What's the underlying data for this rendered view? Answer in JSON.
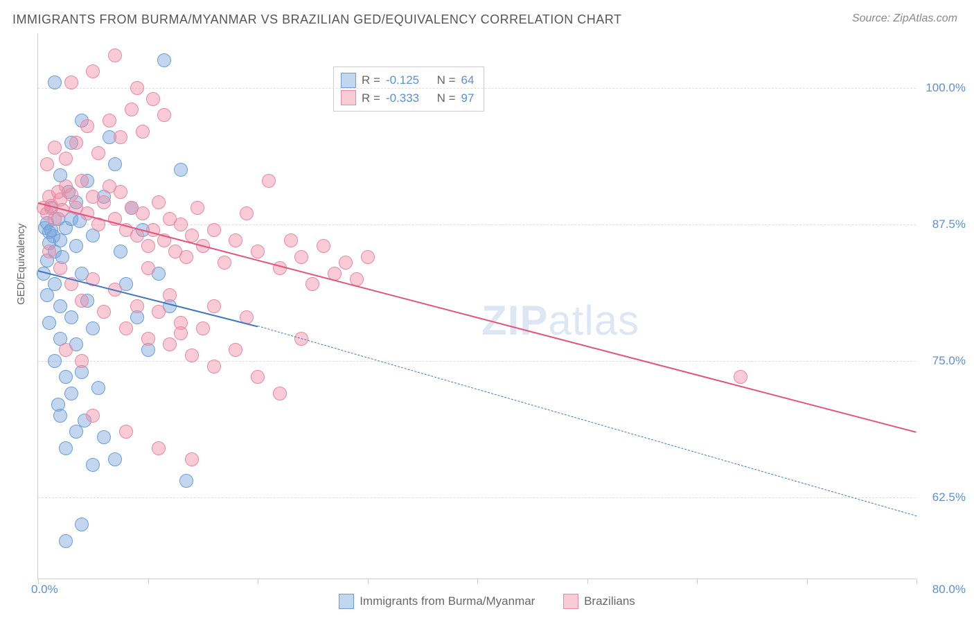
{
  "title": "IMMIGRANTS FROM BURMA/MYANMAR VS BRAZILIAN GED/EQUIVALENCY CORRELATION CHART",
  "source": "Source: ZipAtlas.com",
  "watermark_bold": "ZIP",
  "watermark_rest": "atlas",
  "chart": {
    "type": "scatter",
    "ylabel": "GED/Equivalency",
    "xlim": [
      0,
      80
    ],
    "ylim": [
      55,
      105
    ],
    "ytick_labels": [
      "62.5%",
      "75.0%",
      "87.5%",
      "100.0%"
    ],
    "ytick_values": [
      62.5,
      75.0,
      87.5,
      100.0
    ],
    "xtick_values": [
      0,
      10,
      20,
      30,
      40,
      50,
      60,
      70,
      80
    ],
    "xaxis_min_label": "0.0%",
    "xaxis_max_label": "80.0%",
    "background_color": "#ffffff",
    "grid_color": "#dddddd",
    "axis_color": "#cccccc",
    "tick_label_color": "#5b8fd6",
    "ylabel_color": "#666666",
    "marker_radius": 10,
    "series": [
      {
        "name": "Immigrants from Burma/Myanmar",
        "fill_color": "rgba(120,165,220,0.45)",
        "stroke_color": "#6a9ed8",
        "line_color": "#3f78c1",
        "line_width": 2.5,
        "dash_line_width": 1.5,
        "R": "-0.125",
        "N": "64",
        "trend": {
          "x1": 0,
          "y1": 83.3,
          "x2_solid": 20,
          "y2_solid": 78.2,
          "x2_dash": 80,
          "y2_dash": 60.8
        },
        "points": [
          [
            0.6,
            87.2
          ],
          [
            0.8,
            87.6
          ],
          [
            1.0,
            86.8
          ],
          [
            1.2,
            87.0
          ],
          [
            1.4,
            86.4
          ],
          [
            1.0,
            85.8
          ],
          [
            0.8,
            84.2
          ],
          [
            1.5,
            85.0
          ],
          [
            2.0,
            86.0
          ],
          [
            2.5,
            87.2
          ],
          [
            3.0,
            88.0
          ],
          [
            2.2,
            84.5
          ],
          [
            3.5,
            85.5
          ],
          [
            4.0,
            83.0
          ],
          [
            1.5,
            82.0
          ],
          [
            2.0,
            80.0
          ],
          [
            3.0,
            79.0
          ],
          [
            4.5,
            80.5
          ],
          [
            1.0,
            78.5
          ],
          [
            2.0,
            77.0
          ],
          [
            3.5,
            76.5
          ],
          [
            5.0,
            78.0
          ],
          [
            1.5,
            75.0
          ],
          [
            2.5,
            73.5
          ],
          [
            4.0,
            74.0
          ],
          [
            3.0,
            72.0
          ],
          [
            1.8,
            71.0
          ],
          [
            5.5,
            72.5
          ],
          [
            2.0,
            70.0
          ],
          [
            4.2,
            69.5
          ],
          [
            3.5,
            68.5
          ],
          [
            6.0,
            68.0
          ],
          [
            2.5,
            67.0
          ],
          [
            5.0,
            65.5
          ],
          [
            7.0,
            66.0
          ],
          [
            4.5,
            91.5
          ],
          [
            2.0,
            92.0
          ],
          [
            3.5,
            89.5
          ],
          [
            6.0,
            90.0
          ],
          [
            5.0,
            86.5
          ],
          [
            7.5,
            85.0
          ],
          [
            8.0,
            82.0
          ],
          [
            9.0,
            79.0
          ],
          [
            10.0,
            76.0
          ],
          [
            9.5,
            87.0
          ],
          [
            11.0,
            83.0
          ],
          [
            12.0,
            80.0
          ],
          [
            13.0,
            92.5
          ],
          [
            11.5,
            102.5
          ],
          [
            1.5,
            100.5
          ],
          [
            3.0,
            95.0
          ],
          [
            4.0,
            97.0
          ],
          [
            6.5,
            95.5
          ],
          [
            7.0,
            93.0
          ],
          [
            8.5,
            89.0
          ],
          [
            4.0,
            60.0
          ],
          [
            2.5,
            58.5
          ],
          [
            13.5,
            64.0
          ],
          [
            0.5,
            83.0
          ],
          [
            0.8,
            81.0
          ],
          [
            1.2,
            89.0
          ],
          [
            1.8,
            88.0
          ],
          [
            2.8,
            90.5
          ],
          [
            3.8,
            87.8
          ]
        ]
      },
      {
        "name": "Brazilians",
        "fill_color": "rgba(240,140,165,0.45)",
        "stroke_color": "#e889a3",
        "line_color": "#e5537a",
        "line_width": 2.5,
        "R": "-0.333",
        "N": "97",
        "trend": {
          "x1": 0,
          "y1": 89.5,
          "x2_solid": 80,
          "y2_solid": 68.5
        },
        "points": [
          [
            0.5,
            89.0
          ],
          [
            0.8,
            88.5
          ],
          [
            1.0,
            90.0
          ],
          [
            1.2,
            89.2
          ],
          [
            1.5,
            88.0
          ],
          [
            1.8,
            90.5
          ],
          [
            2.0,
            89.8
          ],
          [
            2.2,
            88.8
          ],
          [
            2.5,
            91.0
          ],
          [
            3.0,
            90.2
          ],
          [
            3.5,
            89.0
          ],
          [
            4.0,
            91.5
          ],
          [
            4.5,
            88.5
          ],
          [
            5.0,
            90.0
          ],
          [
            5.5,
            87.5
          ],
          [
            6.0,
            89.5
          ],
          [
            6.5,
            91.0
          ],
          [
            7.0,
            88.0
          ],
          [
            7.5,
            90.5
          ],
          [
            8.0,
            87.0
          ],
          [
            8.5,
            89.0
          ],
          [
            9.0,
            86.5
          ],
          [
            9.5,
            88.5
          ],
          [
            10.0,
            85.5
          ],
          [
            10.5,
            87.0
          ],
          [
            11.0,
            89.5
          ],
          [
            11.5,
            86.0
          ],
          [
            12.0,
            88.0
          ],
          [
            12.5,
            85.0
          ],
          [
            13.0,
            87.5
          ],
          [
            13.5,
            84.5
          ],
          [
            14.0,
            86.5
          ],
          [
            14.5,
            89.0
          ],
          [
            15.0,
            85.5
          ],
          [
            16.0,
            87.0
          ],
          [
            17.0,
            84.0
          ],
          [
            18.0,
            86.0
          ],
          [
            19.0,
            88.5
          ],
          [
            20.0,
            85.0
          ],
          [
            21.0,
            91.5
          ],
          [
            22.0,
            83.5
          ],
          [
            23.0,
            86.0
          ],
          [
            24.0,
            84.5
          ],
          [
            25.0,
            82.0
          ],
          [
            26.0,
            85.5
          ],
          [
            27.0,
            83.0
          ],
          [
            28.0,
            84.0
          ],
          [
            29.0,
            82.5
          ],
          [
            30.0,
            84.5
          ],
          [
            0.8,
            93.0
          ],
          [
            1.5,
            94.5
          ],
          [
            2.5,
            93.5
          ],
          [
            3.5,
            95.0
          ],
          [
            4.5,
            96.5
          ],
          [
            5.5,
            94.0
          ],
          [
            6.5,
            97.0
          ],
          [
            7.5,
            95.5
          ],
          [
            8.5,
            98.0
          ],
          [
            9.5,
            96.0
          ],
          [
            10.5,
            99.0
          ],
          [
            11.5,
            97.5
          ],
          [
            3.0,
            100.5
          ],
          [
            5.0,
            101.5
          ],
          [
            7.0,
            103.0
          ],
          [
            9.0,
            100.0
          ],
          [
            1.0,
            85.0
          ],
          [
            2.0,
            83.5
          ],
          [
            3.0,
            82.0
          ],
          [
            4.0,
            80.5
          ],
          [
            5.0,
            82.5
          ],
          [
            6.0,
            79.5
          ],
          [
            7.0,
            81.5
          ],
          [
            8.0,
            78.0
          ],
          [
            9.0,
            80.0
          ],
          [
            10.0,
            77.0
          ],
          [
            11.0,
            79.5
          ],
          [
            12.0,
            76.5
          ],
          [
            13.0,
            78.5
          ],
          [
            14.0,
            75.5
          ],
          [
            15.0,
            78.0
          ],
          [
            16.0,
            74.5
          ],
          [
            18.0,
            76.0
          ],
          [
            20.0,
            73.5
          ],
          [
            22.0,
            72.0
          ],
          [
            5.0,
            70.0
          ],
          [
            8.0,
            68.5
          ],
          [
            11.0,
            67.0
          ],
          [
            14.0,
            66.0
          ],
          [
            13.0,
            77.5
          ],
          [
            10.0,
            83.5
          ],
          [
            12.0,
            81.0
          ],
          [
            16.0,
            80.0
          ],
          [
            19.0,
            79.0
          ],
          [
            24.0,
            77.0
          ],
          [
            64.0,
            73.5
          ],
          [
            2.5,
            76.0
          ],
          [
            4.0,
            75.0
          ]
        ]
      }
    ],
    "stats_legend": {
      "R_label": "R  =",
      "N_label": "N  ="
    },
    "bottom_legend_labels": [
      "Immigrants from Burma/Myanmar",
      "Brazilians"
    ]
  }
}
